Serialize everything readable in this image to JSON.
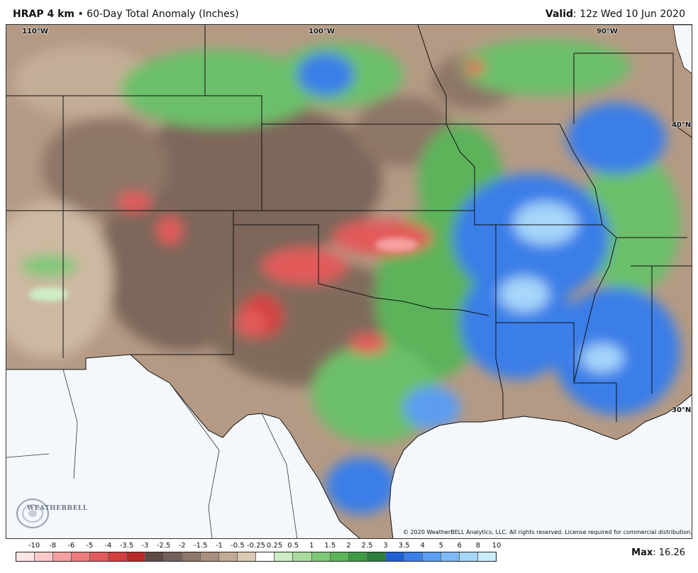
{
  "header": {
    "product": "HRAP 4 km",
    "separator": "•",
    "description": "60-Day Total Anomaly (Inches)",
    "valid_label": "Valid",
    "valid_time": ": 12z Wed 10 Jun 2020"
  },
  "map": {
    "region": "South-Central United States",
    "coord_labels": {
      "lon_110": "110°W",
      "lon_100": "100°W",
      "lon_90": "90°W",
      "lat_40": "40°N",
      "lat_30": "30°N"
    },
    "copyright": "© 2020 WeatherBELL Analytics, LLC. All rights reserved. License required for commercial distribution.",
    "logo_text": "WEATHERBELL"
  },
  "legend": {
    "labels": [
      "-10",
      "-8",
      "-6",
      "-5",
      "-4",
      "-3.5",
      "-3",
      "-2.5",
      "-2",
      "-1.5",
      "-1",
      "-0.5",
      "-0.25",
      "0.25",
      "0.5",
      "1",
      "1.5",
      "2",
      "2.5",
      "3",
      "3.5",
      "4",
      "5",
      "6",
      "8",
      "10"
    ],
    "colors": [
      "#ffe4e4",
      "#fcc8c8",
      "#f6a0a0",
      "#ef7c7c",
      "#e35a5a",
      "#d43f3f",
      "#b82a2a",
      "#5e4a43",
      "#74605a",
      "#8e7668",
      "#a88f7e",
      "#c2ab96",
      "#dcc9b4",
      "#ffffff",
      "#cdeec6",
      "#a8dc9c",
      "#7fc878",
      "#5cb35a",
      "#3f9a45",
      "#2e7e3c",
      "#1f5fd6",
      "#3a7ee8",
      "#5b9df2",
      "#7fbaf6",
      "#a6d6fa",
      "#c9ecfc"
    ]
  },
  "max": {
    "label": "Max",
    "value": ": 16.26"
  }
}
